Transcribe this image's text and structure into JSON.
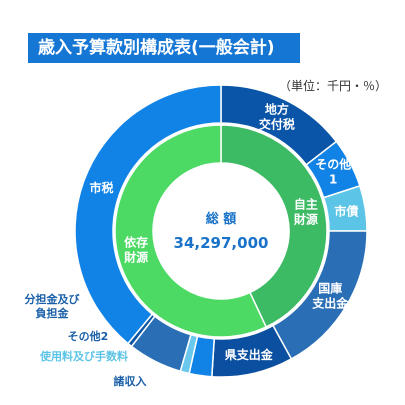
{
  "title": "歳入予算款別構成表(一般会計)",
  "unit_note": "（単位：千円・％）",
  "chart_data": {
    "type": "pie",
    "center_label": "総 額",
    "center_value": "34,297,000",
    "inner_ring": [
      {
        "label": "自主\n財源",
        "value": 43,
        "color": "#3cba64"
      },
      {
        "label": "依存\n財源",
        "value": 57,
        "color": "#4cd964"
      }
    ],
    "outer_ring": [
      {
        "label": "地方\n交付税",
        "value": 14.5,
        "color": "#0a55a8"
      },
      {
        "label": "その他\n1",
        "value": 5.5,
        "color": "#1283e6"
      },
      {
        "label": "市債",
        "value": 5,
        "color": "#5cc4e6"
      },
      {
        "label": "国庫\n支出金",
        "value": 17,
        "color": "#2a6eb5"
      },
      {
        "label": "県支出金",
        "value": 9,
        "color": "#0a4fa0"
      },
      {
        "label": "諸収入",
        "value": 2.5,
        "color": "#1283e6"
      },
      {
        "label": "使用料及び手数料",
        "value": 1,
        "color": "#6ac8ef"
      },
      {
        "label": "その他2",
        "value": 6,
        "color": "#2a6eb5"
      },
      {
        "label": "分担金及び\n負担金",
        "value": 0.5,
        "color": "#0a55a8"
      },
      {
        "label": "市税",
        "value": 39,
        "color": "#1283e6"
      }
    ]
  }
}
